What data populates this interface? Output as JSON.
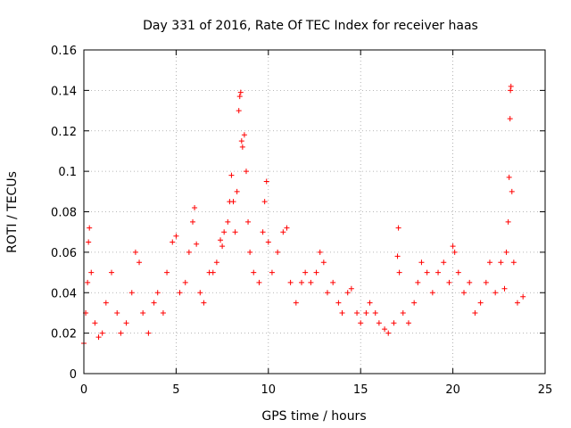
{
  "chart_data": {
    "type": "scatter",
    "title": "Day 331 of 2016, Rate Of TEC Index for receiver haas",
    "xlabel": "GPS time / hours",
    "ylabel": "ROTI / TECUs",
    "xlim": [
      0,
      25
    ],
    "ylim": [
      0,
      0.16
    ],
    "x_ticks": [
      0,
      5,
      10,
      15,
      20,
      25
    ],
    "y_ticks": [
      0,
      0.02,
      0.04,
      0.06,
      0.08,
      0.1,
      0.12,
      0.14,
      0.16
    ],
    "x_tick_labels": [
      "0",
      "5",
      "10",
      "15",
      "20",
      "25"
    ],
    "y_tick_labels": [
      "0",
      "0.02",
      "0.04",
      "0.06",
      "0.08",
      "0.1",
      "0.12",
      "0.14",
      "0.16"
    ],
    "grid": true,
    "marker": "plus",
    "series_color": "#ff0000",
    "points": [
      [
        0.0,
        0.015
      ],
      [
        0.1,
        0.03
      ],
      [
        0.2,
        0.045
      ],
      [
        0.25,
        0.065
      ],
      [
        0.3,
        0.072
      ],
      [
        0.4,
        0.05
      ],
      [
        0.6,
        0.025
      ],
      [
        0.8,
        0.018
      ],
      [
        1.0,
        0.02
      ],
      [
        1.2,
        0.035
      ],
      [
        1.5,
        0.05
      ],
      [
        1.8,
        0.03
      ],
      [
        2.0,
        0.02
      ],
      [
        2.3,
        0.025
      ],
      [
        2.6,
        0.04
      ],
      [
        2.8,
        0.06
      ],
      [
        3.0,
        0.055
      ],
      [
        3.2,
        0.03
      ],
      [
        3.5,
        0.02
      ],
      [
        3.8,
        0.035
      ],
      [
        4.0,
        0.04
      ],
      [
        4.3,
        0.03
      ],
      [
        4.5,
        0.05
      ],
      [
        4.8,
        0.065
      ],
      [
        5.0,
        0.068
      ],
      [
        5.2,
        0.04
      ],
      [
        5.5,
        0.045
      ],
      [
        5.7,
        0.06
      ],
      [
        5.9,
        0.075
      ],
      [
        6.0,
        0.082
      ],
      [
        6.1,
        0.064
      ],
      [
        6.3,
        0.04
      ],
      [
        6.5,
        0.035
      ],
      [
        6.8,
        0.05
      ],
      [
        7.0,
        0.05
      ],
      [
        7.2,
        0.055
      ],
      [
        7.4,
        0.066
      ],
      [
        7.5,
        0.063
      ],
      [
        7.6,
        0.07
      ],
      [
        7.8,
        0.075
      ],
      [
        7.9,
        0.085
      ],
      [
        8.0,
        0.098
      ],
      [
        8.1,
        0.085
      ],
      [
        8.2,
        0.07
      ],
      [
        8.3,
        0.09
      ],
      [
        8.4,
        0.13
      ],
      [
        8.45,
        0.137
      ],
      [
        8.5,
        0.139
      ],
      [
        8.55,
        0.115
      ],
      [
        8.6,
        0.112
      ],
      [
        8.7,
        0.118
      ],
      [
        8.8,
        0.1
      ],
      [
        8.9,
        0.075
      ],
      [
        9.0,
        0.06
      ],
      [
        9.2,
        0.05
      ],
      [
        9.5,
        0.045
      ],
      [
        9.7,
        0.07
      ],
      [
        9.8,
        0.085
      ],
      [
        9.9,
        0.095
      ],
      [
        10.0,
        0.065
      ],
      [
        10.2,
        0.05
      ],
      [
        10.5,
        0.06
      ],
      [
        10.8,
        0.07
      ],
      [
        11.0,
        0.072
      ],
      [
        11.2,
        0.045
      ],
      [
        11.5,
        0.035
      ],
      [
        11.8,
        0.045
      ],
      [
        12.0,
        0.05
      ],
      [
        12.3,
        0.045
      ],
      [
        12.6,
        0.05
      ],
      [
        12.8,
        0.06
      ],
      [
        13.0,
        0.055
      ],
      [
        13.2,
        0.04
      ],
      [
        13.5,
        0.045
      ],
      [
        13.8,
        0.035
      ],
      [
        14.0,
        0.03
      ],
      [
        14.3,
        0.04
      ],
      [
        14.5,
        0.042
      ],
      [
        14.8,
        0.03
      ],
      [
        15.0,
        0.025
      ],
      [
        15.3,
        0.03
      ],
      [
        15.5,
        0.035
      ],
      [
        15.8,
        0.03
      ],
      [
        16.0,
        0.025
      ],
      [
        16.3,
        0.022
      ],
      [
        16.5,
        0.02
      ],
      [
        16.8,
        0.025
      ],
      [
        17.0,
        0.058
      ],
      [
        17.05,
        0.072
      ],
      [
        17.1,
        0.05
      ],
      [
        17.3,
        0.03
      ],
      [
        17.6,
        0.025
      ],
      [
        17.9,
        0.035
      ],
      [
        18.1,
        0.045
      ],
      [
        18.3,
        0.055
      ],
      [
        18.6,
        0.05
      ],
      [
        18.9,
        0.04
      ],
      [
        19.2,
        0.05
      ],
      [
        19.5,
        0.055
      ],
      [
        19.8,
        0.045
      ],
      [
        20.0,
        0.063
      ],
      [
        20.1,
        0.06
      ],
      [
        20.3,
        0.05
      ],
      [
        20.6,
        0.04
      ],
      [
        20.9,
        0.045
      ],
      [
        21.2,
        0.03
      ],
      [
        21.5,
        0.035
      ],
      [
        21.8,
        0.045
      ],
      [
        22.0,
        0.055
      ],
      [
        22.3,
        0.04
      ],
      [
        22.6,
        0.055
      ],
      [
        22.8,
        0.042
      ],
      [
        22.9,
        0.06
      ],
      [
        23.0,
        0.075
      ],
      [
        23.05,
        0.097
      ],
      [
        23.1,
        0.126
      ],
      [
        23.12,
        0.14
      ],
      [
        23.15,
        0.142
      ],
      [
        23.2,
        0.09
      ],
      [
        23.3,
        0.055
      ],
      [
        23.5,
        0.035
      ],
      [
        23.8,
        0.038
      ]
    ]
  }
}
